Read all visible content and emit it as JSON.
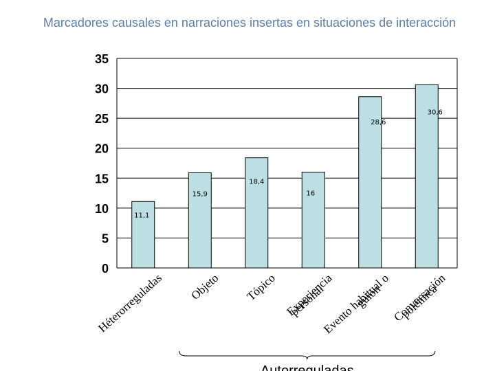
{
  "chart_data": {
    "type": "bar",
    "title": "Marcadores causales en narraciones insertas en situaciones de interacción",
    "categories": [
      [
        "Héterorreguladas"
      ],
      [
        "Objeto"
      ],
      [
        "Tópico"
      ],
      [
        "Experiencia",
        "personal"
      ],
      [
        "Evento habitual o",
        "guión"
      ],
      [
        "Conversación",
        "polémica"
      ]
    ],
    "values": [
      11.1,
      15.9,
      18.4,
      16,
      28.6,
      30.6
    ],
    "data_labels": [
      "11,1",
      "15,9",
      "18,4",
      "16",
      "28,6",
      "30,6"
    ],
    "ylim": [
      0,
      35
    ],
    "yticks": [
      0,
      5,
      10,
      15,
      20,
      25,
      30,
      35
    ],
    "group_label": "Autorreguladas",
    "grid": true,
    "bar_color": "#bcdfe3",
    "xlabel": "",
    "ylabel": ""
  }
}
